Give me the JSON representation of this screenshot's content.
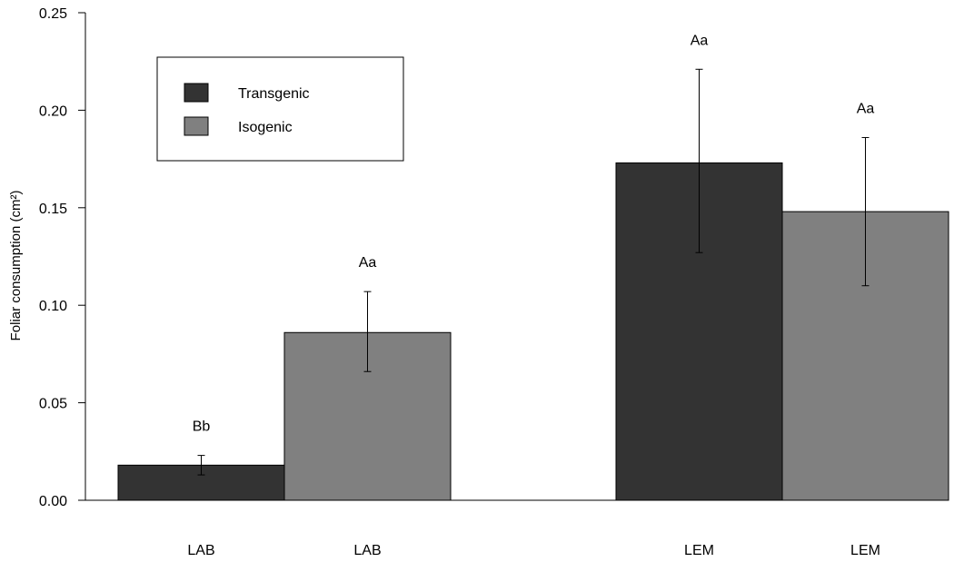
{
  "chart_data": {
    "type": "bar",
    "ylabel": "Foliar consumption (cm²)",
    "ylim": [
      0,
      0.25
    ],
    "yticks": [
      "0.00",
      "0.05",
      "0.10",
      "0.15",
      "0.20",
      "0.25"
    ],
    "grid": false,
    "legend_placement": "top-left",
    "legend": [
      {
        "name": "Transgenic",
        "color": "#333333"
      },
      {
        "name": "Isogenic",
        "color": "#808080"
      }
    ],
    "bars": [
      {
        "category": "LAB",
        "series": "Transgenic",
        "value": 0.018,
        "err_low": 0.013,
        "err_high": 0.023,
        "label": "Bb"
      },
      {
        "category": "LAB",
        "series": "Isogenic",
        "value": 0.086,
        "err_low": 0.066,
        "err_high": 0.107,
        "label": "Aa"
      },
      {
        "category": "LEM",
        "series": "Transgenic",
        "value": 0.173,
        "err_low": 0.127,
        "err_high": 0.221,
        "label": "Aa"
      },
      {
        "category": "LEM",
        "series": "Isogenic",
        "value": 0.148,
        "err_low": 0.11,
        "err_high": 0.186,
        "label": "Aa"
      }
    ]
  }
}
